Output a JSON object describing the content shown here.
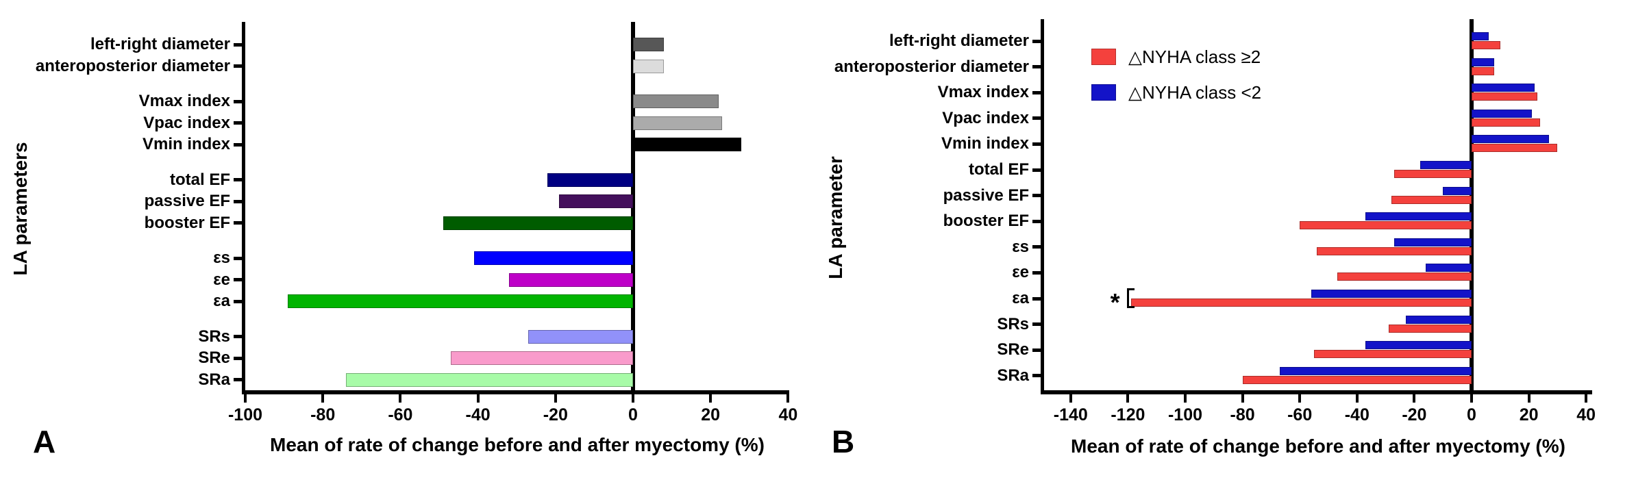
{
  "figure": {
    "panels": [
      {
        "letter": "A",
        "y_axis_label": "LA parameters",
        "x_axis_label": "Mean of rate of change before and after myectomy (%)",
        "chart_data": {
          "type": "bar",
          "orientation": "horizontal",
          "title": "",
          "categories": [
            "left-right diameter",
            "anteroposterior diameter",
            "Vmax index",
            "Vpac index",
            "Vmin index",
            "total EF",
            "passive EF",
            "booster EF",
            "εs",
            "εe",
            "εa",
            "SRs",
            "SRe",
            "SRa"
          ],
          "groups": [
            2,
            3,
            3,
            3,
            3
          ],
          "values": [
            8,
            8,
            22,
            23,
            28,
            -22,
            -19,
            -49,
            -41,
            -32,
            -89,
            -27,
            -47,
            -74
          ],
          "bar_colors": [
            "#575757",
            "#DCDCDC",
            "#8A8A8A",
            "#ABABAB",
            "#000000",
            "#000082",
            "#44105C",
            "#005C00",
            "#0000FF",
            "#BE00C8",
            "#00B400",
            "#9191F9",
            "#F99BCB",
            "#A8FBA8"
          ],
          "xlim": [
            -100,
            40
          ],
          "x_ticks": [
            -100,
            -80,
            -60,
            -40,
            -20,
            0,
            20,
            40
          ],
          "grid": false
        }
      },
      {
        "letter": "B",
        "y_axis_label": "LA parameter",
        "x_axis_label": "Mean of rate of change before and after myectomy (%)",
        "chart_data": {
          "type": "bar",
          "orientation": "horizontal",
          "title": "",
          "categories": [
            "left-right diameter",
            "anteroposterior diameter",
            "Vmax index",
            "Vpac index",
            "Vmin index",
            "total EF",
            "passive EF",
            "booster EF",
            "εs",
            "εe",
            "εa",
            "SRs",
            "SRe",
            "SRa"
          ],
          "series": [
            {
              "name": "△NYHA class ≥2",
              "color": "#F4413D",
              "values": [
                10,
                8,
                23,
                24,
                30,
                -27,
                -28,
                -60,
                -54,
                -47,
                -119,
                -29,
                -55,
                -80
              ]
            },
            {
              "name": "△NYHA class <2",
              "color": "#1313C8",
              "values": [
                6,
                8,
                22,
                21,
                27,
                -18,
                -10,
                -37,
                -27,
                -16,
                -56,
                -23,
                -37,
                -67
              ]
            }
          ],
          "xlim": [
            -140,
            40
          ],
          "x_ticks": [
            -140,
            -120,
            -100,
            -80,
            -60,
            -40,
            -20,
            0,
            20,
            40
          ],
          "legend_position": "top-left-inside",
          "grid": false,
          "annotation": {
            "text": "*",
            "category": "εa",
            "note": "significance bracket on ΔNYHA class ≥2 εa bar"
          }
        }
      }
    ]
  }
}
